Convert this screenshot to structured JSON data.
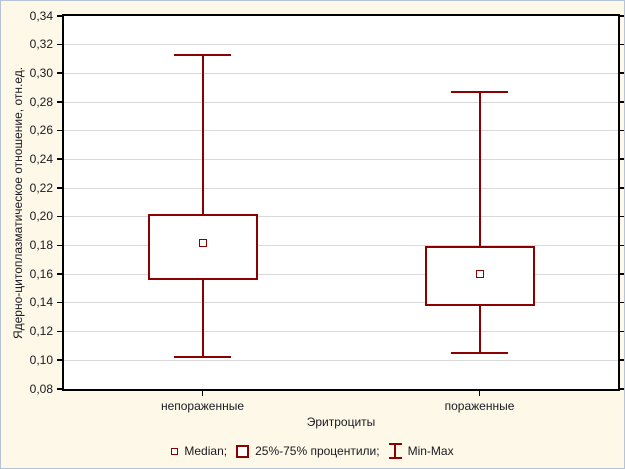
{
  "colors": {
    "background": "#fdf8e7",
    "plot_background": "#ffffff",
    "frame": "#000000",
    "gridline": "#d9d9d9",
    "series": "#8b0000",
    "text": "#1a1a22",
    "outer_border": "#b6c4da"
  },
  "chart_data": {
    "type": "boxplot",
    "title": "",
    "xlabel": "Эритроциты",
    "ylabel": "Ядерно-цитоплазматическое отношение, отн.ед.",
    "categories": [
      "непораженные",
      "пораженные"
    ],
    "series": [
      {
        "name": "непораженные",
        "min": 0.102,
        "q25": 0.156,
        "median": 0.182,
        "q75": 0.202,
        "max": 0.313
      },
      {
        "name": "пораженные",
        "min": 0.105,
        "q25": 0.138,
        "median": 0.16,
        "q75": 0.18,
        "max": 0.287
      }
    ],
    "ylim": [
      0.08,
      0.34
    ],
    "ytick_step": 0.02,
    "ytick_labels": [
      "0,34",
      "0,32",
      "0,30",
      "0,28",
      "0,26",
      "0,24",
      "0,22",
      "0,20",
      "0,18",
      "0,16",
      "0,14",
      "0,12",
      "0,10",
      "0,08"
    ],
    "grid": "horizontal",
    "legend_position": "bottom",
    "legend": [
      {
        "marker": "median-square-icon",
        "label": "Median;"
      },
      {
        "marker": "box-square-icon",
        "label": "25%-75% процентили;"
      },
      {
        "marker": "minmax-whisker-icon",
        "label": "Min-Max"
      }
    ]
  }
}
